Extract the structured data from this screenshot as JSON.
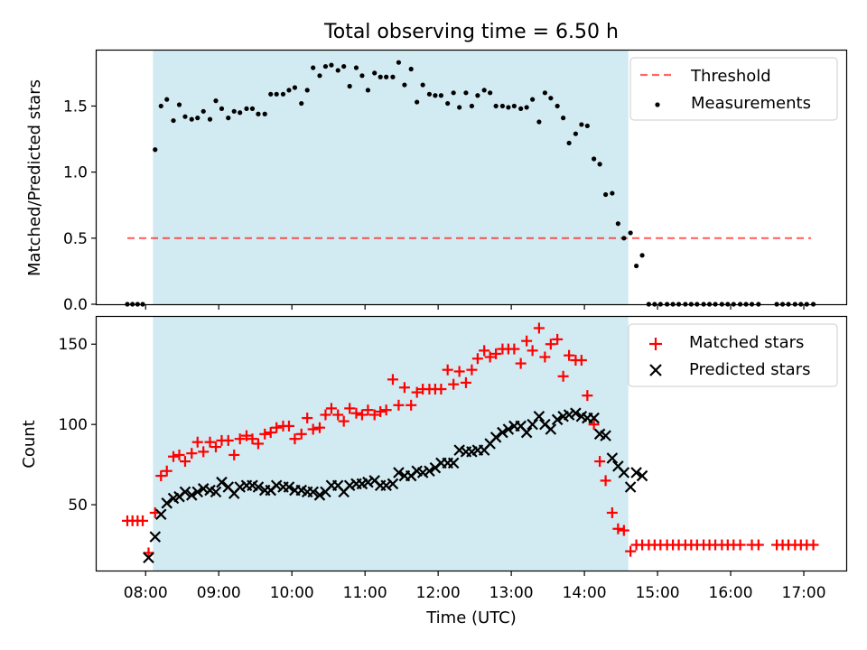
{
  "figure": {
    "title": "Total observing time = 6.50 h",
    "xlabel": "Time (UTC)"
  },
  "colors": {
    "observing_window": "#add8e6",
    "threshold": "#ff0000",
    "measurements": "#000000",
    "matched": "#ff0000",
    "predicted": "#000000"
  },
  "chart_data": [
    {
      "type": "scatter",
      "title": "Total observing time = 6.50 h",
      "ylabel": "Matched/Predicted stars",
      "xlabel": "",
      "x_unit": "hours UTC",
      "xlim": [
        7.33,
        17.58
      ],
      "ylim": [
        0,
        1.92
      ],
      "yticks": [
        0.0,
        0.5,
        1.0,
        1.5
      ],
      "ytick_labels": [
        "0.0",
        "0.5",
        "1.0",
        "1.5"
      ],
      "xticks": [
        8,
        9,
        10,
        11,
        12,
        13,
        14,
        15,
        16,
        17
      ],
      "xtick_labels": [
        "08:00",
        "09:00",
        "10:00",
        "11:00",
        "12:00",
        "13:00",
        "14:00",
        "15:00",
        "16:00",
        "17:00"
      ],
      "observing_window": [
        8.1,
        14.6
      ],
      "legend_position": "top-right",
      "grid": false,
      "series": [
        {
          "name": "Threshold",
          "style": "dashed-line",
          "x": [
            7.75,
            17.1
          ],
          "values": [
            0.5,
            0.5
          ]
        },
        {
          "name": "Measurements",
          "style": "dot",
          "x": [
            7.75,
            7.82,
            7.89,
            7.96,
            8.13,
            8.21,
            8.29,
            8.38,
            8.46,
            8.54,
            8.63,
            8.71,
            8.79,
            8.88,
            8.96,
            9.04,
            9.13,
            9.21,
            9.29,
            9.38,
            9.46,
            9.54,
            9.63,
            9.71,
            9.79,
            9.88,
            9.96,
            10.04,
            10.13,
            10.21,
            10.29,
            10.38,
            10.46,
            10.54,
            10.63,
            10.71,
            10.79,
            10.88,
            10.96,
            11.04,
            11.13,
            11.21,
            11.29,
            11.38,
            11.46,
            11.54,
            11.63,
            11.71,
            11.79,
            11.88,
            11.96,
            12.04,
            12.13,
            12.21,
            12.29,
            12.38,
            12.46,
            12.54,
            12.63,
            12.71,
            12.79,
            12.88,
            12.96,
            13.04,
            13.13,
            13.21,
            13.29,
            13.38,
            13.46,
            13.54,
            13.63,
            13.71,
            13.79,
            13.88,
            13.96,
            14.04,
            14.13,
            14.21,
            14.29,
            14.38,
            14.46,
            14.54,
            14.63,
            14.71,
            14.79,
            14.88,
            14.96,
            15.04,
            15.13,
            15.21,
            15.29,
            15.38,
            15.46,
            15.54,
            15.63,
            15.71,
            15.79,
            15.88,
            15.96,
            16.04,
            16.13,
            16.21,
            16.29,
            16.38,
            16.63,
            16.71,
            16.79,
            16.88,
            16.96,
            17.04,
            17.13
          ],
          "values": [
            0.0,
            0.0,
            0.0,
            0.0,
            1.17,
            1.5,
            1.55,
            1.39,
            1.51,
            1.42,
            1.4,
            1.41,
            1.46,
            1.4,
            1.54,
            1.48,
            1.41,
            1.46,
            1.45,
            1.48,
            1.48,
            1.44,
            1.44,
            1.59,
            1.59,
            1.59,
            1.62,
            1.64,
            1.52,
            1.62,
            1.79,
            1.73,
            1.8,
            1.81,
            1.77,
            1.8,
            1.65,
            1.79,
            1.73,
            1.62,
            1.75,
            1.72,
            1.72,
            1.72,
            1.83,
            1.66,
            1.78,
            1.53,
            1.66,
            1.59,
            1.58,
            1.58,
            1.52,
            1.6,
            1.49,
            1.6,
            1.5,
            1.58,
            1.62,
            1.6,
            1.5,
            1.5,
            1.49,
            1.5,
            1.48,
            1.49,
            1.55,
            1.38,
            1.6,
            1.56,
            1.5,
            1.41,
            1.22,
            1.29,
            1.36,
            1.35,
            1.1,
            1.06,
            0.83,
            0.84,
            0.61,
            0.5,
            0.54,
            0.29,
            0.37,
            0.0,
            0.0,
            0.0,
            0.0,
            0.0,
            0.0,
            0.0,
            0.0,
            0.0,
            0.0,
            0.0,
            0.0,
            0.0,
            0.0,
            0.0,
            0.0,
            0.0,
            0.0,
            0.0,
            0.0,
            0.0,
            0.0,
            0.0,
            0.0,
            0.0,
            0.0
          ]
        }
      ]
    },
    {
      "type": "scatter",
      "title": "",
      "ylabel": "Count",
      "xlabel": "Time (UTC)",
      "x_unit": "hours UTC",
      "xlim": [
        7.33,
        17.58
      ],
      "ylim": [
        9,
        167
      ],
      "yticks": [
        50,
        100,
        150
      ],
      "ytick_labels": [
        "50",
        "100",
        "150"
      ],
      "xticks": [
        8,
        9,
        10,
        11,
        12,
        13,
        14,
        15,
        16,
        17
      ],
      "xtick_labels": [
        "08:00",
        "09:00",
        "10:00",
        "11:00",
        "12:00",
        "13:00",
        "14:00",
        "15:00",
        "16:00",
        "17:00"
      ],
      "observing_window": [
        8.1,
        14.6
      ],
      "legend_position": "top-right",
      "grid": false,
      "series": [
        {
          "name": "Matched stars",
          "style": "plus",
          "x": [
            7.75,
            7.82,
            7.89,
            7.96,
            8.04,
            8.13,
            8.21,
            8.29,
            8.38,
            8.46,
            8.54,
            8.63,
            8.71,
            8.79,
            8.88,
            8.96,
            9.04,
            9.13,
            9.21,
            9.29,
            9.38,
            9.46,
            9.54,
            9.63,
            9.71,
            9.79,
            9.88,
            9.96,
            10.04,
            10.13,
            10.21,
            10.29,
            10.38,
            10.46,
            10.54,
            10.63,
            10.71,
            10.79,
            10.88,
            10.96,
            11.04,
            11.13,
            11.21,
            11.29,
            11.38,
            11.46,
            11.54,
            11.63,
            11.71,
            11.79,
            11.88,
            11.96,
            12.04,
            12.13,
            12.21,
            12.29,
            12.38,
            12.46,
            12.54,
            12.63,
            12.71,
            12.79,
            12.88,
            12.96,
            13.04,
            13.13,
            13.21,
            13.29,
            13.38,
            13.46,
            13.54,
            13.63,
            13.71,
            13.79,
            13.88,
            13.96,
            14.04,
            14.13,
            14.21,
            14.29,
            14.38,
            14.46,
            14.54,
            14.63,
            14.71,
            14.79,
            14.88,
            14.96,
            15.04,
            15.13,
            15.21,
            15.29,
            15.38,
            15.46,
            15.54,
            15.63,
            15.71,
            15.79,
            15.88,
            15.96,
            16.04,
            16.13,
            16.29,
            16.38,
            16.63,
            16.71,
            16.79,
            16.88,
            16.96,
            17.04,
            17.13
          ],
          "values": [
            40,
            40,
            40,
            40,
            20,
            45,
            68,
            71,
            80,
            81,
            77,
            82,
            89,
            83,
            89,
            86,
            90,
            90,
            81,
            91,
            93,
            91,
            88,
            94,
            95,
            98,
            99,
            99,
            91,
            94,
            104,
            97,
            98,
            106,
            110,
            106,
            102,
            110,
            107,
            106,
            109,
            106,
            108,
            109,
            128,
            112,
            123,
            112,
            120,
            122,
            122,
            122,
            122,
            134,
            125,
            133,
            126,
            134,
            141,
            146,
            142,
            144,
            147,
            147,
            147,
            138,
            152,
            146,
            160,
            142,
            150,
            153,
            130,
            143,
            140,
            140,
            118,
            100,
            77,
            65,
            45,
            35,
            34,
            21,
            25,
            25,
            25,
            25,
            25,
            25,
            25,
            25,
            25,
            25,
            25,
            25,
            25,
            25,
            25,
            25,
            25,
            25,
            25,
            25,
            25,
            25,
            25,
            25,
            25,
            25,
            25
          ]
        },
        {
          "name": "Predicted stars",
          "style": "x",
          "x": [
            8.04,
            8.13,
            8.21,
            8.29,
            8.38,
            8.46,
            8.54,
            8.63,
            8.71,
            8.79,
            8.88,
            8.96,
            9.04,
            9.13,
            9.21,
            9.29,
            9.38,
            9.46,
            9.54,
            9.63,
            9.71,
            9.79,
            9.88,
            9.96,
            10.04,
            10.13,
            10.21,
            10.29,
            10.38,
            10.46,
            10.54,
            10.63,
            10.71,
            10.79,
            10.88,
            10.96,
            11.04,
            11.13,
            11.21,
            11.29,
            11.38,
            11.46,
            11.54,
            11.63,
            11.71,
            11.79,
            11.88,
            11.96,
            12.04,
            12.13,
            12.21,
            12.29,
            12.38,
            12.46,
            12.54,
            12.63,
            12.71,
            12.79,
            12.88,
            12.96,
            13.04,
            13.13,
            13.21,
            13.29,
            13.38,
            13.46,
            13.54,
            13.63,
            13.71,
            13.79,
            13.88,
            13.96,
            14.04,
            14.13,
            14.21,
            14.29,
            14.38,
            14.46,
            14.54,
            14.63,
            14.71,
            14.79
          ],
          "values": [
            17,
            30,
            44,
            51,
            54,
            55,
            58,
            56,
            58,
            60,
            59,
            58,
            64,
            61,
            57,
            61,
            62,
            62,
            61,
            59,
            59,
            62,
            61,
            61,
            59,
            59,
            58,
            58,
            56,
            58,
            62,
            62,
            58,
            62,
            63,
            63,
            64,
            65,
            62,
            62,
            63,
            70,
            68,
            68,
            71,
            70,
            71,
            73,
            76,
            76,
            76,
            84,
            83,
            83,
            84,
            84,
            88,
            92,
            95,
            97,
            99,
            99,
            95,
            100,
            105,
            100,
            97,
            103,
            105,
            106,
            107,
            105,
            104,
            104,
            94,
            93,
            79,
            74,
            70,
            61,
            70,
            68
          ]
        }
      ]
    }
  ]
}
